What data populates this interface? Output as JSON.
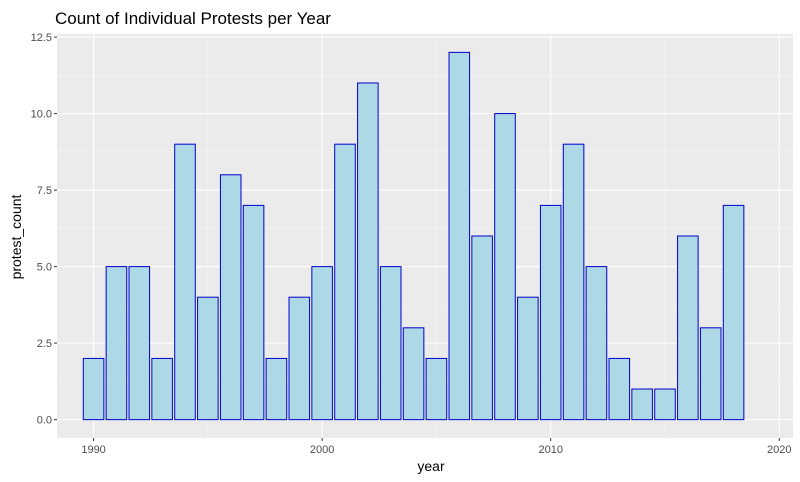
{
  "chart_data": {
    "type": "bar",
    "title": "Count of Individual Protests per Year",
    "xlabel": "year",
    "ylabel": "protest_count",
    "x": [
      1990,
      1991,
      1992,
      1993,
      1994,
      1995,
      1996,
      1997,
      1998,
      1999,
      2000,
      2001,
      2002,
      2003,
      2004,
      2005,
      2006,
      2007,
      2008,
      2009,
      2010,
      2011,
      2012,
      2013,
      2014,
      2015,
      2016,
      2017,
      2018,
      2019
    ],
    "values": [
      2,
      5,
      5,
      2,
      9,
      4,
      8,
      7,
      2,
      4,
      5,
      9,
      11,
      5,
      3,
      2,
      12,
      6,
      10,
      4,
      7,
      9,
      5,
      2,
      1,
      1,
      6,
      3,
      7,
      0
    ],
    "xlim": [
      1988.4,
      2020.6
    ],
    "ylim": [
      -0.6,
      12.6
    ],
    "x_ticks": [
      1990,
      2000,
      2010,
      2020
    ],
    "x_tick_labels": [
      "1990",
      "2000",
      "2010",
      "2020"
    ],
    "y_ticks": [
      0,
      2.5,
      5,
      7.5,
      10,
      12.5
    ],
    "y_tick_labels": [
      "0.0",
      "2.5",
      "5.0",
      "7.5",
      "10.0",
      "12.5"
    ],
    "grid": true,
    "legend": "none",
    "colors": {
      "bar_fill": "#add8e6",
      "bar_stroke": "#0000cd",
      "panel_background": "#ebebeb",
      "grid_major": "#ffffff",
      "grid_minor": "#f5f5f5"
    }
  }
}
